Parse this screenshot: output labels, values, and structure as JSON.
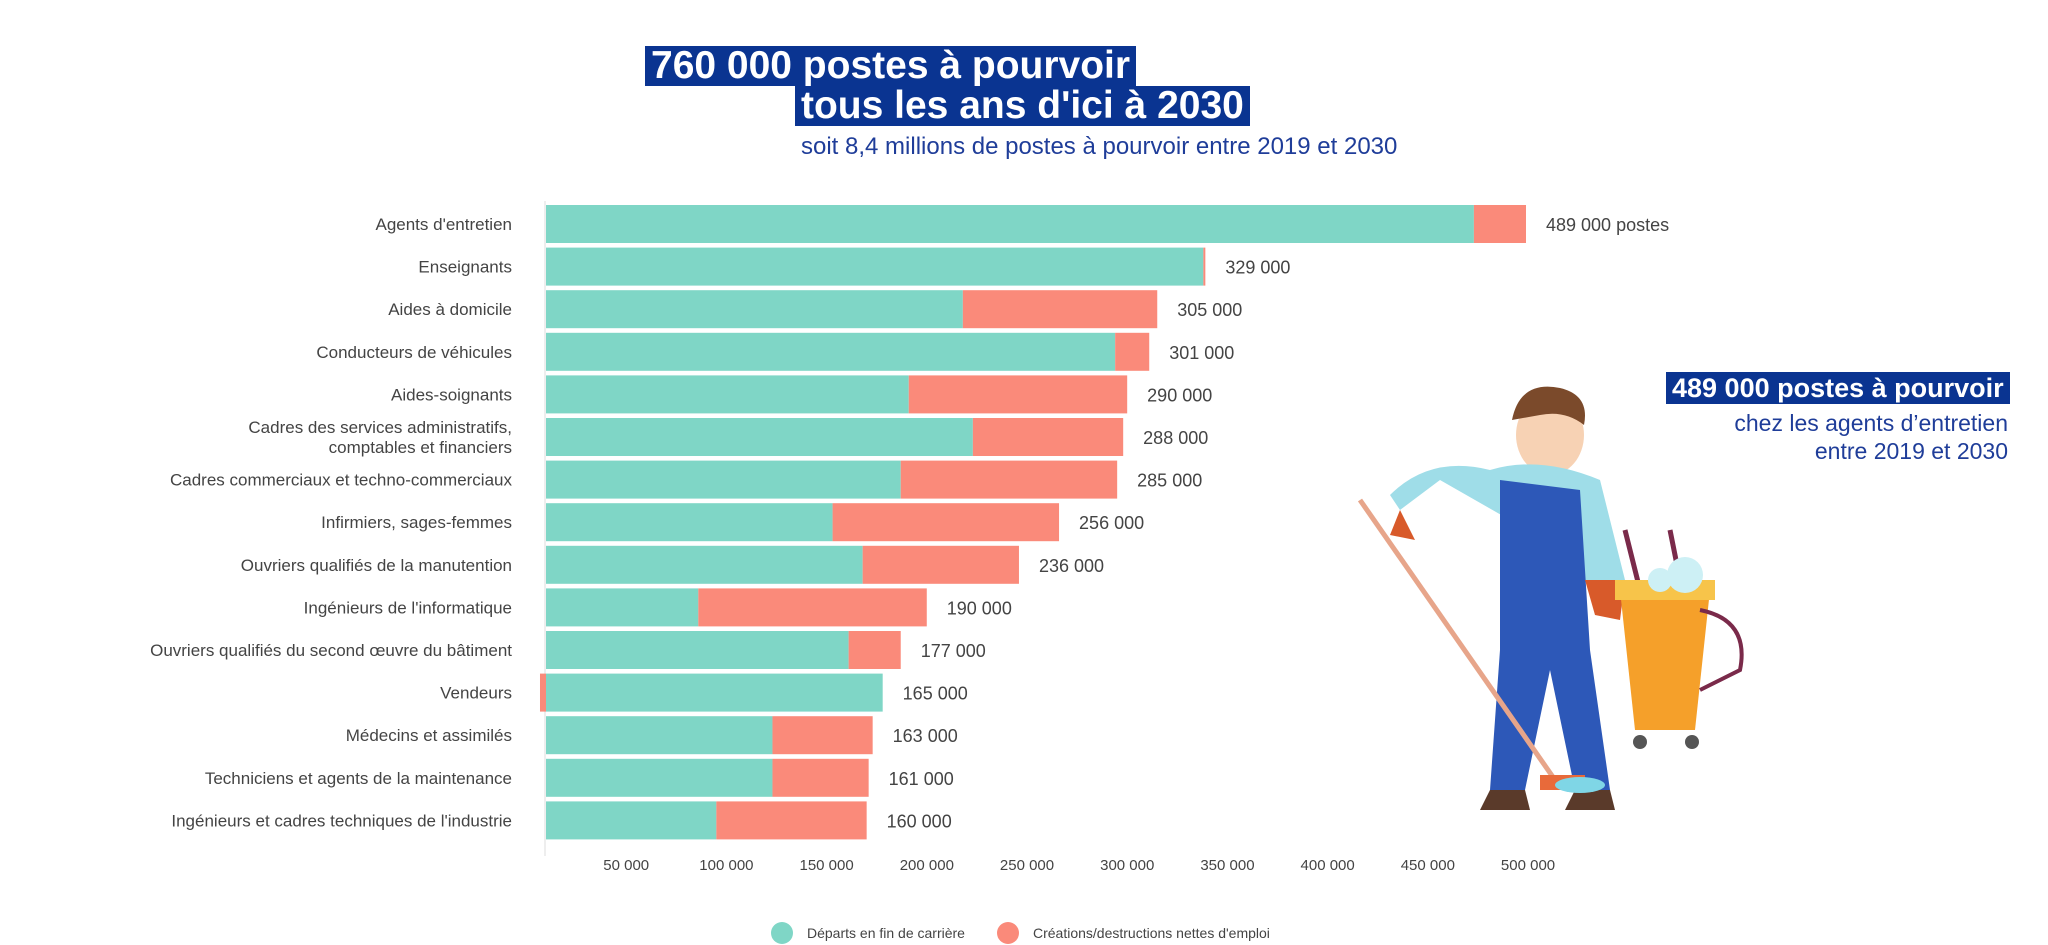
{
  "header": {
    "line1": "760 000 postes à pourvoir",
    "line2": "tous les ans d'ici à 2030",
    "subtitle": "soit 8,4 millions de postes à pourvoir entre 2019 et 2030"
  },
  "callout": {
    "title": "489 000 postes à pourvoir",
    "line1": "chez les agents d’entretien",
    "line2": "entre 2019 et 2030"
  },
  "colors": {
    "departs": "#7fd6c6",
    "creations": "#fa8a7a",
    "title_bg": "#0a3491",
    "title_text": "#1f3d99"
  },
  "chart_data": {
    "type": "bar",
    "orientation": "horizontal",
    "stacked": true,
    "categories": [
      "Agents d'entretien",
      "Enseignants",
      "Aides à domicile",
      "Conducteurs de véhicules",
      "Aides-soignants",
      "Cadres des services administratifs,|comptables et financiers",
      "Cadres commerciaux et techno-commerciaux",
      "Infirmiers, sages-femmes",
      "Ouvriers qualifiés de la manutention",
      "Ingénieurs de l'informatique",
      "Ouvriers qualifiés du second œuvre du bâtiment",
      "Vendeurs",
      "Médecins et assimilés",
      "Techniciens et agents de la maintenance",
      "Ingénieurs et cadres techniques de l'industrie"
    ],
    "series": [
      {
        "name": "Départs en fin de carrière",
        "values": [
          463000,
          328000,
          208000,
          284000,
          181000,
          213000,
          177000,
          143000,
          158000,
          76000,
          151000,
          168000,
          113000,
          113000,
          85000
        ]
      },
      {
        "name": "Créations/destructions nettes d'emploi",
        "values": [
          26000,
          1000,
          97000,
          17000,
          109000,
          75000,
          108000,
          113000,
          78000,
          114000,
          26000,
          -3000,
          50000,
          48000,
          75000
        ]
      }
    ],
    "data_labels": [
      "489 000 postes",
      "329 000",
      "305 000",
      "301 000",
      "290 000",
      "288 000",
      "285 000",
      "256 000",
      "236 000",
      "190 000",
      "177 000",
      "165 000",
      "163 000",
      "161 000",
      "160 000"
    ],
    "x_ticks": [
      "50 000",
      "100 000",
      "150 000",
      "200 000",
      "250 000",
      "300 000",
      "350 000",
      "400 000",
      "450 000",
      "500 000"
    ],
    "x_tick_values": [
      50000,
      100000,
      150000,
      200000,
      250000,
      300000,
      350000,
      400000,
      450000,
      500000
    ],
    "xlim": [
      0,
      500000
    ],
    "grid": false,
    "legend": "bottom"
  }
}
